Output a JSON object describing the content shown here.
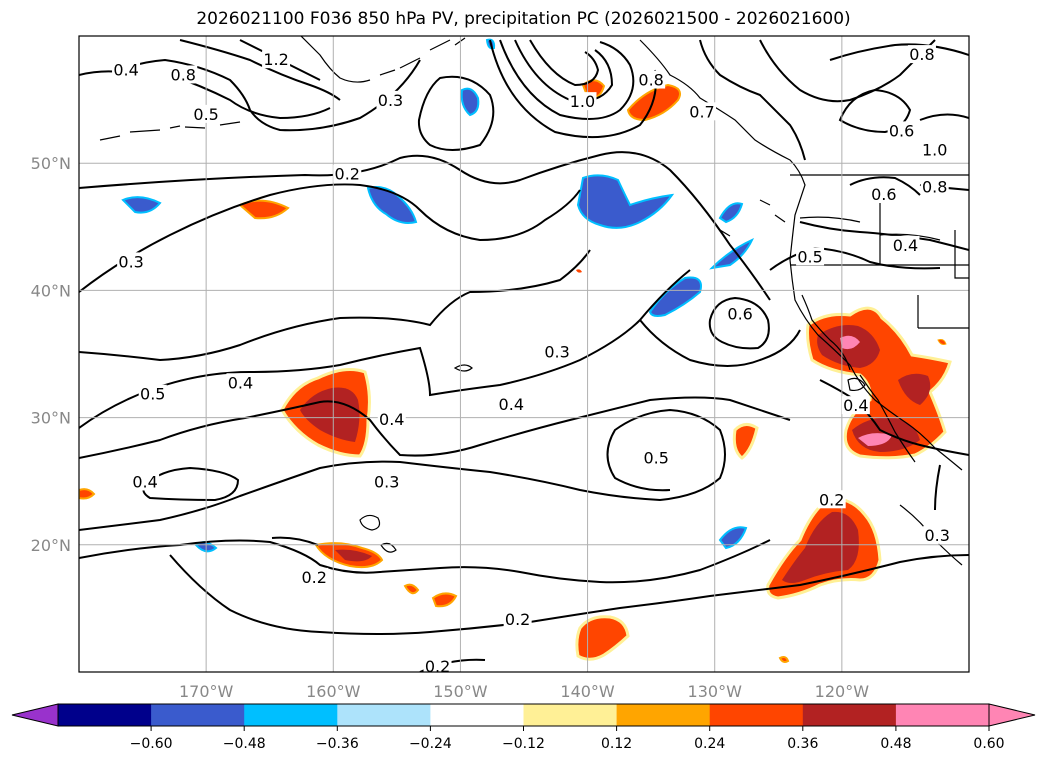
{
  "title": "2026021100 F036 850 hPa PV, precipitation PC (2026021500 - 2026021600)",
  "map": {
    "lat_ticks": [
      {
        "label": "50°N",
        "lat": 50
      },
      {
        "label": "40°N",
        "lat": 40
      },
      {
        "label": "30°N",
        "lat": 30
      },
      {
        "label": "20°N",
        "lat": 20
      }
    ],
    "lon_ticks": [
      {
        "label": "170°W",
        "lon": -170
      },
      {
        "label": "160°W",
        "lon": -160
      },
      {
        "label": "150°W",
        "lon": -150
      },
      {
        "label": "140°W",
        "lon": -140
      },
      {
        "label": "130°W",
        "lon": -130
      },
      {
        "label": "120°W",
        "lon": -120
      }
    ],
    "extent": {
      "lon_min": -180,
      "lon_max": -110,
      "lat_min": 10,
      "lat_max": 60
    },
    "contour_labels": [
      {
        "text": "0.4",
        "lon": -176.3,
        "lat": 57.3
      },
      {
        "text": "0.8",
        "lon": -171.8,
        "lat": 56.9
      },
      {
        "text": "1.2",
        "lon": -164.5,
        "lat": 58.1
      },
      {
        "text": "0.5",
        "lon": -170.0,
        "lat": 53.8
      },
      {
        "text": "0.3",
        "lon": -155.5,
        "lat": 54.9
      },
      {
        "text": "0.2",
        "lon": -158.9,
        "lat": 49.1
      },
      {
        "text": "0.3",
        "lon": -175.9,
        "lat": 42.2
      },
      {
        "text": "0.5",
        "lon": -174.2,
        "lat": 31.8
      },
      {
        "text": "0.4",
        "lon": -167.3,
        "lat": 32.7
      },
      {
        "text": "0.4",
        "lon": -174.8,
        "lat": 24.9
      },
      {
        "text": "0.4",
        "lon": -155.4,
        "lat": 29.8
      },
      {
        "text": "0.3",
        "lon": -155.8,
        "lat": 24.9
      },
      {
        "text": "0.2",
        "lon": -161.5,
        "lat": 17.4
      },
      {
        "text": "0.2",
        "lon": -145.5,
        "lat": 14.1
      },
      {
        "text": "0.2",
        "lon": -151.8,
        "lat": 10.4
      },
      {
        "text": "0.3",
        "lon": -142.4,
        "lat": 35.1
      },
      {
        "text": "0.4",
        "lon": -146.0,
        "lat": 31.0
      },
      {
        "text": "0.5",
        "lon": -134.6,
        "lat": 26.8
      },
      {
        "text": "0.6",
        "lon": -128.0,
        "lat": 38.1
      },
      {
        "text": "1.0",
        "lon": -140.4,
        "lat": 54.8
      },
      {
        "text": "0.8",
        "lon": -135.0,
        "lat": 56.5
      },
      {
        "text": "0.7",
        "lon": -131.0,
        "lat": 54.0
      },
      {
        "text": "0.8",
        "lon": -113.7,
        "lat": 58.5
      },
      {
        "text": "0.6",
        "lon": -115.3,
        "lat": 52.5
      },
      {
        "text": "1.0",
        "lon": -112.7,
        "lat": 51.0
      },
      {
        "text": "0.8",
        "lon": -112.7,
        "lat": 48.1
      },
      {
        "text": "0.6",
        "lon": -116.7,
        "lat": 47.5
      },
      {
        "text": "0.4",
        "lon": -115.0,
        "lat": 43.5
      },
      {
        "text": "0.5",
        "lon": -122.5,
        "lat": 42.6
      },
      {
        "text": "0.4",
        "lon": -118.9,
        "lat": 30.9
      },
      {
        "text": "0.3",
        "lon": -112.5,
        "lat": 20.7
      },
      {
        "text": "0.2",
        "lon": -120.8,
        "lat": 23.5
      }
    ]
  },
  "colorbar": {
    "colors": [
      "#9932cc",
      "#00008b",
      "#3a5bcd",
      "#00bfff",
      "#ade3fb",
      "#ffffff",
      "#fff096",
      "#ffa500",
      "#ff4500",
      "#b22222",
      "#ff85b4",
      "#ff85b4"
    ],
    "labels": [
      "−0.60",
      "−0.48",
      "−0.36",
      "−0.24",
      "−0.12",
      "0.12",
      "0.24",
      "0.36",
      "0.48",
      "0.60"
    ]
  }
}
